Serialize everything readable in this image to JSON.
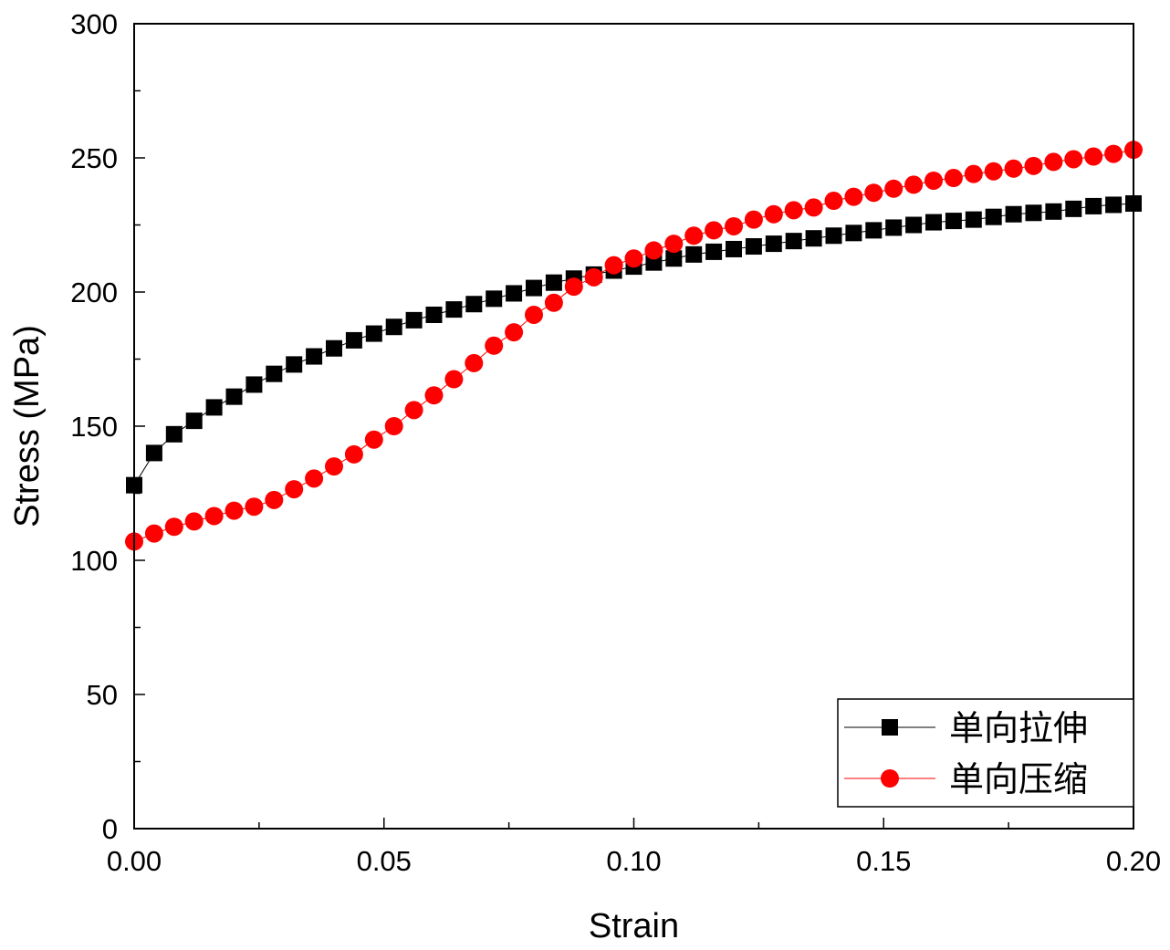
{
  "chart_data": {
    "type": "scatter",
    "xlabel": "Strain",
    "ylabel": "Stress (MPa)",
    "xlim": [
      0,
      0.2
    ],
    "ylim": [
      0,
      300
    ],
    "xticks": [
      "0.00",
      "0.05",
      "0.10",
      "0.15",
      "0.20"
    ],
    "yticks": [
      "0",
      "50",
      "100",
      "150",
      "200",
      "250",
      "300"
    ],
    "legend_position": "bottom-right",
    "grid": false,
    "series": [
      {
        "name": "单向拉伸",
        "color": "#000000",
        "marker": "square",
        "x": [
          0.0,
          0.004,
          0.008,
          0.012,
          0.016,
          0.02,
          0.024,
          0.028,
          0.032,
          0.036,
          0.04,
          0.044,
          0.048,
          0.052,
          0.056,
          0.06,
          0.064,
          0.068,
          0.072,
          0.076,
          0.08,
          0.084,
          0.088,
          0.092,
          0.096,
          0.1,
          0.104,
          0.108,
          0.112,
          0.116,
          0.12,
          0.124,
          0.128,
          0.132,
          0.136,
          0.14,
          0.144,
          0.148,
          0.152,
          0.156,
          0.16,
          0.164,
          0.168,
          0.172,
          0.176,
          0.18,
          0.184,
          0.188,
          0.192,
          0.196,
          0.2
        ],
        "y": [
          128,
          140,
          147,
          152,
          157,
          161,
          165.5,
          169.5,
          173,
          176,
          179,
          182,
          184.5,
          187,
          189.5,
          191.5,
          193.5,
          195.5,
          197.5,
          199.5,
          201.5,
          203.5,
          205,
          206.5,
          208,
          209.5,
          211,
          212.5,
          214,
          215,
          216,
          217,
          218,
          219,
          220,
          221,
          222,
          223,
          224,
          225,
          226,
          226.5,
          227,
          228,
          229,
          229.5,
          230,
          231,
          232,
          232.5,
          233
        ]
      },
      {
        "name": "单向压缩",
        "color": "#ff0000",
        "marker": "circle",
        "x": [
          0.0,
          0.004,
          0.008,
          0.012,
          0.016,
          0.02,
          0.024,
          0.028,
          0.032,
          0.036,
          0.04,
          0.044,
          0.048,
          0.052,
          0.056,
          0.06,
          0.064,
          0.068,
          0.072,
          0.076,
          0.08,
          0.084,
          0.088,
          0.092,
          0.096,
          0.1,
          0.104,
          0.108,
          0.112,
          0.116,
          0.12,
          0.124,
          0.128,
          0.132,
          0.136,
          0.14,
          0.144,
          0.148,
          0.152,
          0.156,
          0.16,
          0.164,
          0.168,
          0.172,
          0.176,
          0.18,
          0.184,
          0.188,
          0.192,
          0.196,
          0.2
        ],
        "y": [
          107,
          110,
          112.5,
          114.5,
          116.5,
          118.5,
          120,
          122.5,
          126.5,
          130.5,
          135,
          139.5,
          145,
          150,
          156,
          161.5,
          167.5,
          173.5,
          180,
          185,
          191.5,
          196,
          202,
          205.5,
          210,
          212.5,
          215.5,
          218,
          221,
          223,
          224.5,
          227,
          229,
          230.5,
          231.5,
          234,
          235.5,
          237,
          238.5,
          240,
          241.5,
          242.5,
          244,
          245,
          246,
          247,
          248.5,
          249.5,
          250.5,
          251.5,
          253
        ]
      }
    ]
  }
}
